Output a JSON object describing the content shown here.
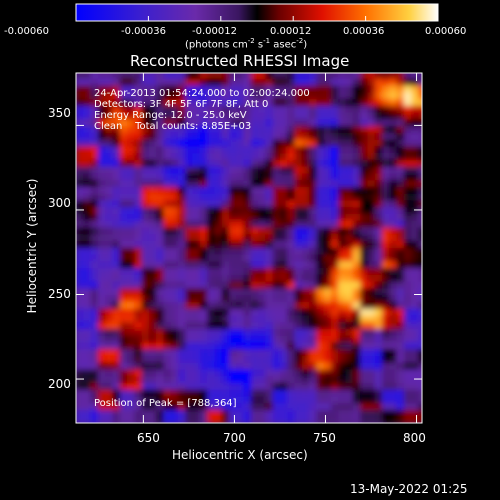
{
  "colorbar": {
    "ticks": [
      "-0.00060",
      "-0.00036",
      "-0.00012",
      "0.00012",
      "0.00036",
      "0.00060"
    ],
    "label_prefix": "(photons cm",
    "label_exp1": "-2",
    "label_mid": " s",
    "label_exp2": "-1",
    "label_mid2": " asec",
    "label_exp3": "-2",
    "label_suffix": ")"
  },
  "chart_data": {
    "type": "heatmap",
    "title": "Reconstructed RHESSI Image",
    "xlabel": "Heliocentric X (arcsec)",
    "ylabel": "Heliocentric Y (arcsec)",
    "xlim": [
      613,
      803
    ],
    "ylim": [
      174,
      381
    ],
    "x_ticks": [
      650,
      700,
      750,
      800
    ],
    "y_ticks": [
      200,
      250,
      300,
      350
    ],
    "color_range": [
      -0.0006,
      0.0006
    ],
    "peak": [
      788,
      364
    ],
    "info_lines": [
      "24-Apr-2013 01:54:24.000 to 02:00:24.000",
      "Detectors: 3F 4F 5F 6F 7F 8F, Att 0",
      "Energy Range: 12.0 - 25.0 keV",
      "Clean    Total counts: 8.85E+03"
    ],
    "peak_label": "Position of Peak = [788,364]"
  },
  "timestamp": "13-May-2022 01:25"
}
